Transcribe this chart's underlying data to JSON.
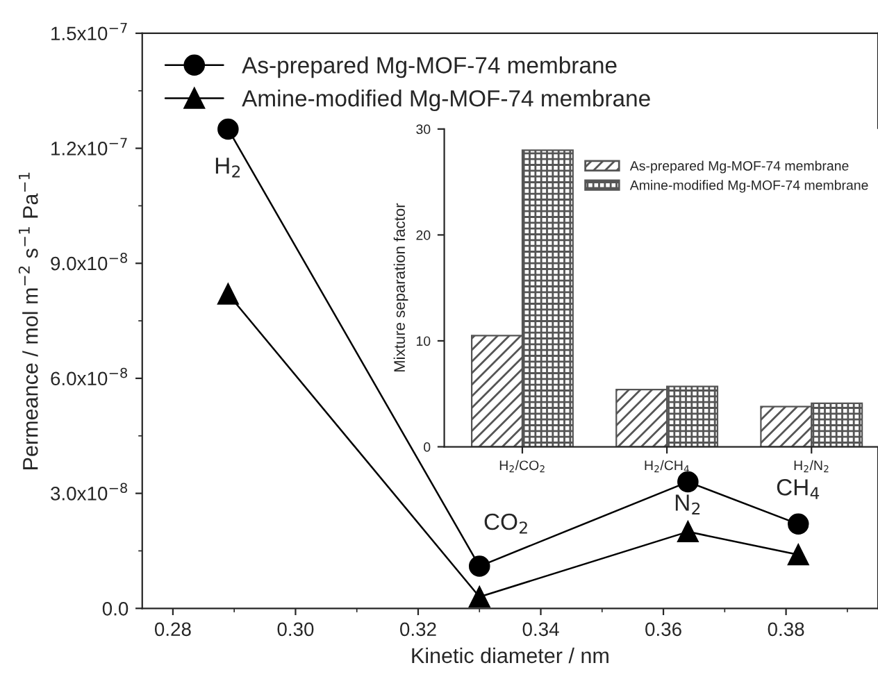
{
  "chart_data": [
    {
      "type": "line",
      "xlabel": "Kinetic diameter / nm",
      "ylabel": "Permeance / mol m$^{−2}$ s$^{−1}$ Pa$^{−1}$",
      "x": [
        0.289,
        0.33,
        0.364,
        0.382
      ],
      "series": [
        {
          "name": "As-prepared Mg-MOF-74 membrane",
          "color": "#000000",
          "marker": "circle",
          "values": [
            1.25e-07,
            1.1e-08,
            3.3e-08,
            2.2e-08
          ]
        },
        {
          "name": "Amine-modified Mg-MOF-74 membrane",
          "color": "#000000",
          "marker": "triangle",
          "values": [
            8.2e-08,
            3e-09,
            2e-08,
            1.4e-08
          ]
        }
      ],
      "xlim": [
        0.275,
        0.395
      ],
      "xticks": [
        {
          "value": 0.28,
          "label": "0.28"
        },
        {
          "value": 0.3,
          "label": "0.30"
        },
        {
          "value": 0.32,
          "label": "0.32"
        },
        {
          "value": 0.34,
          "label": "0.34"
        },
        {
          "value": 0.36,
          "label": "0.36"
        },
        {
          "value": 0.38,
          "label": "0.38"
        }
      ],
      "ylim": [
        0,
        1.5e-07
      ],
      "yticks": [
        {
          "value": 0,
          "label": "0.0"
        },
        {
          "value": 3e-08,
          "label": "3.0x10$^{−8}$"
        },
        {
          "value": 6e-08,
          "label": "6.0x10$^{−8}$"
        },
        {
          "value": 9e-08,
          "label": "9.0x10$^{−8}$"
        },
        {
          "value": 1.2e-07,
          "label": "1.2x10$^{−7}$"
        },
        {
          "value": 1.5e-07,
          "label": "1.5x10$^{−7}$"
        }
      ],
      "line_style": "solid",
      "legend": "top left",
      "grid": false,
      "annotations": [
        {
          "text": "H$_{2}$",
          "x": 0.289,
          "y": 1.25e-07
        },
        {
          "text": "CO$_{2}$",
          "x": 0.33,
          "y": 1.1e-08
        },
        {
          "text": "N$_{2}$",
          "x": 0.364,
          "y": 2e-08
        },
        {
          "text": "CH$_{4}$",
          "x": 0.382,
          "y": 2.2e-08
        }
      ]
    },
    {
      "type": "bar",
      "ylabel": "Mixture separation factor",
      "categories": [
        "H$_{2}$/CO$_{2}$",
        "H$_{2}$/CH$_{4}$",
        "H$_{2}$/N$_{2}$"
      ],
      "series": [
        {
          "name": "As-prepared Mg-MOF-74 membrane",
          "color": "#555555",
          "values": [
            10.5,
            5.4,
            3.8
          ]
        },
        {
          "name": "Amine-modified Mg-MOF-74 membrane",
          "color": "#555555",
          "values": [
            28,
            5.7,
            4.1
          ]
        }
      ],
      "ylim": [
        0,
        30
      ],
      "yticks": [
        0,
        10,
        20,
        30
      ],
      "legend": "top right",
      "grid": false
    }
  ]
}
